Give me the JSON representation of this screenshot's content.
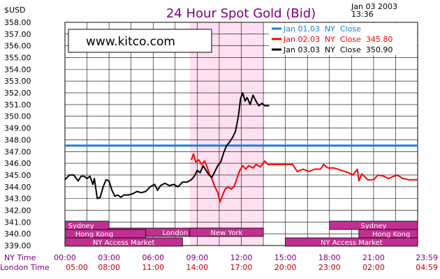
{
  "header": {
    "unit": "$USD",
    "title": "24 Hour Spot Gold (Bid)",
    "date": "Jan 03 2003",
    "time": "13:36"
  },
  "logo_text": "www.kitco.com",
  "colors": {
    "title": "#800080",
    "grid": "#000000",
    "shade": "#ffe0f0",
    "jan01": "#1e7fd8",
    "jan02": "#ff0000",
    "jan03": "#000000",
    "session_bar": "#c03090",
    "session_text": "#ffffff",
    "axis_text_purple": "#800080",
    "axis_text_red": "#c00000"
  },
  "chart_data": {
    "type": "line",
    "title": "24 Hour Spot Gold (Bid)",
    "ylabel": "$USD",
    "ylim": [
      339,
      358
    ],
    "ytick_step": 1,
    "y_ticks": [
      "339.00",
      "340.00",
      "341.00",
      "342.00",
      "343.00",
      "344.00",
      "345.00",
      "346.00",
      "347.00",
      "348.00",
      "349.00",
      "350.00",
      "351.00",
      "352.00",
      "353.00",
      "354.00",
      "355.00",
      "356.00",
      "357.00",
      "358.00"
    ],
    "xlim": [
      0,
      24
    ],
    "x_ticks_ny": [
      "00:00",
      "03:00",
      "06:00",
      "09:00",
      "12:00",
      "15:00",
      "18:00",
      "21:00",
      "23:59"
    ],
    "x_ticks_london": [
      "05:00",
      "08:00",
      "11:00",
      "14:00",
      "17:00",
      "20:00",
      "23:00",
      "02:00",
      "04:59"
    ],
    "x_row_labels": [
      "NY Time",
      "London Time"
    ],
    "grid": true,
    "legend_position": "top-right",
    "shaded_hours": [
      8.5,
      13.5
    ],
    "series": [
      {
        "name": "Jan 01,03 NY Close",
        "legend": "Jan 01,03  NY  Close",
        "color_key": "jan01",
        "points": [
          [
            0,
            347.5
          ],
          [
            24,
            347.5
          ]
        ]
      },
      {
        "name": "Jan 02,03 NY Close 345.80",
        "legend": "Jan 02,03  NY  Close  345.80",
        "color_key": "jan02",
        "points": [
          [
            8.6,
            346.3
          ],
          [
            8.75,
            346.8
          ],
          [
            8.9,
            346.1
          ],
          [
            9.1,
            346.3
          ],
          [
            9.3,
            345.9
          ],
          [
            9.5,
            346.2
          ],
          [
            9.7,
            345.6
          ],
          [
            9.85,
            345.0
          ],
          [
            10.0,
            344.7
          ],
          [
            10.2,
            344.0
          ],
          [
            10.4,
            343.5
          ],
          [
            10.55,
            342.7
          ],
          [
            10.7,
            343.2
          ],
          [
            10.9,
            343.8
          ],
          [
            11.1,
            344.0
          ],
          [
            11.3,
            343.8
          ],
          [
            11.5,
            344.0
          ],
          [
            11.7,
            344.7
          ],
          [
            11.9,
            345.4
          ],
          [
            12.1,
            345.8
          ],
          [
            12.3,
            345.5
          ],
          [
            12.5,
            345.8
          ],
          [
            12.8,
            345.6
          ],
          [
            13.0,
            345.9
          ],
          [
            13.3,
            345.7
          ],
          [
            13.6,
            346.2
          ],
          [
            13.8,
            345.9
          ],
          [
            14.0,
            345.9
          ],
          [
            15.0,
            345.9
          ],
          [
            15.5,
            345.9
          ],
          [
            15.8,
            345.3
          ],
          [
            16.2,
            345.5
          ],
          [
            16.6,
            345.3
          ],
          [
            17.0,
            345.5
          ],
          [
            17.4,
            345.5
          ],
          [
            17.6,
            345.9
          ],
          [
            17.9,
            345.6
          ],
          [
            18.3,
            345.6
          ],
          [
            18.8,
            345.4
          ],
          [
            19.3,
            345.2
          ],
          [
            19.6,
            345.0
          ],
          [
            19.9,
            345.5
          ],
          [
            20.0,
            344.5
          ],
          [
            20.2,
            345.1
          ],
          [
            20.6,
            344.6
          ],
          [
            21.0,
            344.6
          ],
          [
            21.3,
            345.0
          ],
          [
            21.7,
            344.9
          ],
          [
            22.0,
            344.7
          ],
          [
            22.6,
            345.0
          ],
          [
            23.0,
            344.7
          ],
          [
            23.4,
            344.6
          ],
          [
            23.99,
            344.6
          ]
        ]
      },
      {
        "name": "Jan 03,03 NY Close 350.90",
        "legend": "Jan 03,03  NY  Close  350.90",
        "color_key": "jan03",
        "points": [
          [
            0,
            344.6
          ],
          [
            0.3,
            345.0
          ],
          [
            0.6,
            345.0
          ],
          [
            0.9,
            344.5
          ],
          [
            1.1,
            344.9
          ],
          [
            1.3,
            344.9
          ],
          [
            1.5,
            344.7
          ],
          [
            1.7,
            344.9
          ],
          [
            1.9,
            344.2
          ],
          [
            2.0,
            344.7
          ],
          [
            2.2,
            343.0
          ],
          [
            2.4,
            343.1
          ],
          [
            2.6,
            344.0
          ],
          [
            2.8,
            344.6
          ],
          [
            3.0,
            344.5
          ],
          [
            3.2,
            343.7
          ],
          [
            3.4,
            343.2
          ],
          [
            3.6,
            343.3
          ],
          [
            3.8,
            343.1
          ],
          [
            4.0,
            343.3
          ],
          [
            4.3,
            343.3
          ],
          [
            4.6,
            343.4
          ],
          [
            4.9,
            343.6
          ],
          [
            5.2,
            343.5
          ],
          [
            5.5,
            343.6
          ],
          [
            5.8,
            344.0
          ],
          [
            6.1,
            344.2
          ],
          [
            6.3,
            343.7
          ],
          [
            6.5,
            344.1
          ],
          [
            6.8,
            344.3
          ],
          [
            7.1,
            344.1
          ],
          [
            7.4,
            344.2
          ],
          [
            7.7,
            344.0
          ],
          [
            8.0,
            344.4
          ],
          [
            8.3,
            344.4
          ],
          [
            8.6,
            344.6
          ],
          [
            8.8,
            344.9
          ],
          [
            9.0,
            345.4
          ],
          [
            9.2,
            345.2
          ],
          [
            9.4,
            345.8
          ],
          [
            9.6,
            345.4
          ],
          [
            9.8,
            345.0
          ],
          [
            10.0,
            344.8
          ],
          [
            10.2,
            345.3
          ],
          [
            10.4,
            345.8
          ],
          [
            10.6,
            346.1
          ],
          [
            10.8,
            346.9
          ],
          [
            11.0,
            347.5
          ],
          [
            11.2,
            347.8
          ],
          [
            11.4,
            348.2
          ],
          [
            11.6,
            348.7
          ],
          [
            11.8,
            350.0
          ],
          [
            11.95,
            351.5
          ],
          [
            12.1,
            352.0
          ],
          [
            12.25,
            351.3
          ],
          [
            12.4,
            351.6
          ],
          [
            12.6,
            351.0
          ],
          [
            12.8,
            351.8
          ],
          [
            13.0,
            351.3
          ],
          [
            13.2,
            350.9
          ],
          [
            13.4,
            351.1
          ],
          [
            13.6,
            350.9
          ],
          [
            13.9,
            350.9
          ]
        ]
      }
    ]
  },
  "sessions": {
    "rows": [
      {
        "bars": [
          {
            "label": "Sydney",
            "start": 0,
            "end": 3.0,
            "label_at": 1.1
          },
          {
            "label": "Sydney",
            "start": 18.0,
            "end": 24.0,
            "label_at": 21.0
          }
        ]
      },
      {
        "bars": [
          {
            "label": "London",
            "start": 3.0,
            "end": 12.0,
            "label_at": 7.5
          }
        ]
      },
      {
        "bars": [
          {
            "label": "Hong Kong",
            "start": 0,
            "end": 5.5,
            "label_at": 2.0
          },
          {
            "label": "New York",
            "start": 8.5,
            "end": 13.5,
            "label_at": 11.0
          },
          {
            "label": "Hong Kong",
            "start": 20.0,
            "end": 24.0,
            "label_at": 22.2
          }
        ]
      },
      {
        "bars": [
          {
            "label": "NY Access Market",
            "start": 0,
            "end": 8.0,
            "label_at": 4.0
          },
          {
            "label": "NY Access Market",
            "start": 15.0,
            "end": 24.0,
            "label_at": 19.5
          }
        ]
      }
    ]
  }
}
